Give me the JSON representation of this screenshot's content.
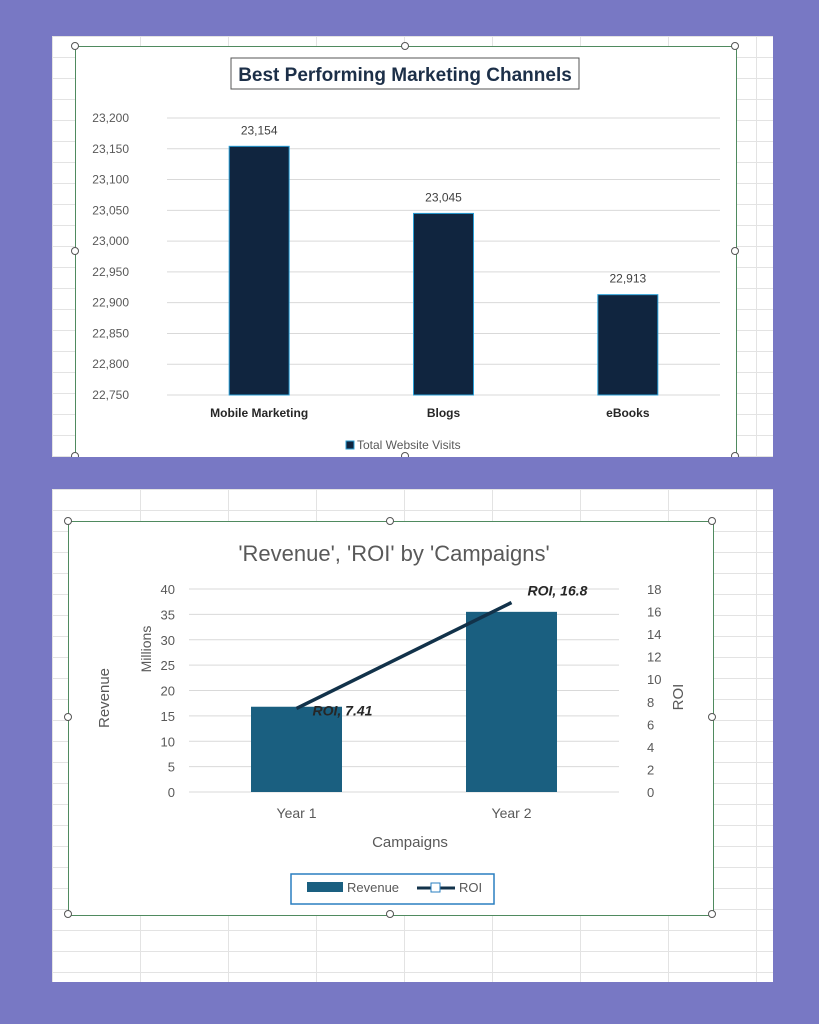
{
  "colors": {
    "background": "#7878c4",
    "chart1_bar": "#10253f",
    "chart1_bar_outline": "#2a9fd6",
    "chart2_bar": "#1a5f80",
    "chart2_line": "#12324a",
    "selection_border": "#4f8a5f",
    "legend_border": "#2a7fc0"
  },
  "chart_data": [
    {
      "type": "bar",
      "title": "Best Performing Marketing Channels",
      "categories": [
        "Mobile Marketing",
        "Blogs",
        "eBooks"
      ],
      "series": [
        {
          "name": "Total Website Visits",
          "values": [
            23154,
            23045,
            22913
          ]
        }
      ],
      "data_labels": [
        "23,154",
        "23,045",
        "22,913"
      ],
      "ylim": [
        22750,
        23200
      ],
      "y_ticks": [
        "22,750",
        "22,800",
        "22,850",
        "22,900",
        "22,950",
        "23,000",
        "23,050",
        "23,100",
        "23,150",
        "23,200"
      ],
      "xlabel": "",
      "ylabel": "",
      "grid": true,
      "legend": "bottom"
    },
    {
      "type": "bar",
      "title": "'Revenue', 'ROI' by 'Campaigns'",
      "categories": [
        "Year 1",
        "Year 2"
      ],
      "series": [
        {
          "name": "Revenue",
          "type": "bar",
          "axis": "left",
          "values": [
            16.8,
            35.5
          ]
        },
        {
          "name": "ROI",
          "type": "line",
          "axis": "right",
          "values": [
            7.41,
            16.8
          ]
        }
      ],
      "data_labels": [
        "ROI, 7.41",
        "ROI, 16.8"
      ],
      "xlabel": "Campaigns",
      "ylabel": "Revenue",
      "y_units_label": "Millions",
      "y2label": "ROI",
      "ylim": [
        0,
        40
      ],
      "y2lim": [
        0,
        18
      ],
      "y_ticks": [
        "0",
        "5",
        "10",
        "15",
        "20",
        "25",
        "30",
        "35",
        "40"
      ],
      "y2_ticks": [
        "0",
        "2",
        "4",
        "6",
        "8",
        "10",
        "12",
        "14",
        "16",
        "18"
      ],
      "grid": true,
      "legend": "bottom"
    }
  ]
}
